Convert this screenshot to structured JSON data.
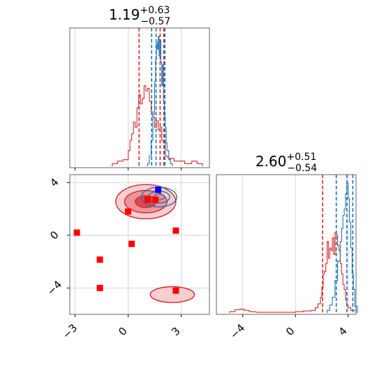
{
  "chart_data": [
    {
      "type": "histogram",
      "panel": "marginal-param-1",
      "title": {
        "main": "1.19",
        "sup": "+0.63",
        "sub": "−0.57"
      },
      "xlim": [
        -3.3,
        4.6
      ],
      "grid": true,
      "tick_labels_shown": false,
      "series": [
        {
          "color": "#d62728",
          "quantiles": [
            0.62,
            1.81,
            2.02
          ],
          "bins": [
            [
              -0.9,
              0.02
            ],
            [
              -0.6,
              0.04
            ],
            [
              -0.3,
              0.05
            ],
            [
              0.0,
              0.12
            ],
            [
              0.1,
              0.2
            ],
            [
              0.2,
              0.25
            ],
            [
              0.3,
              0.34
            ],
            [
              0.4,
              0.3
            ],
            [
              0.5,
              0.45
            ],
            [
              0.6,
              0.55
            ],
            [
              0.7,
              0.48
            ],
            [
              0.8,
              0.52
            ],
            [
              0.9,
              0.62
            ],
            [
              1.0,
              0.58
            ],
            [
              1.1,
              0.6
            ],
            [
              1.2,
              0.5
            ],
            [
              1.3,
              0.42
            ],
            [
              1.4,
              0.38
            ],
            [
              1.5,
              0.3
            ],
            [
              1.6,
              0.35
            ],
            [
              1.7,
              0.28
            ],
            [
              1.8,
              0.3
            ],
            [
              1.9,
              0.2
            ],
            [
              2.0,
              0.18
            ],
            [
              2.1,
              0.08
            ],
            [
              2.2,
              0.07
            ],
            [
              2.3,
              0.05
            ],
            [
              2.4,
              0.06
            ],
            [
              2.6,
              0.04
            ],
            [
              2.8,
              0.04
            ],
            [
              3.2,
              0.02
            ],
            [
              3.6,
              0.04
            ],
            [
              3.9,
              0.02
            ]
          ]
        },
        {
          "color": "#1f77b4",
          "quantiles": [
            1.33,
            1.58,
            2.08
          ],
          "bins": [
            [
              1.1,
              0.02
            ],
            [
              1.2,
              0.08
            ],
            [
              1.3,
              0.2
            ],
            [
              1.4,
              0.4
            ],
            [
              1.5,
              0.65
            ],
            [
              1.55,
              0.82
            ],
            [
              1.6,
              0.95
            ],
            [
              1.65,
              0.9
            ],
            [
              1.7,
              1.0
            ],
            [
              1.75,
              0.85
            ],
            [
              1.8,
              0.97
            ],
            [
              1.85,
              0.8
            ],
            [
              1.9,
              0.62
            ],
            [
              1.95,
              0.78
            ],
            [
              2.0,
              0.5
            ],
            [
              2.05,
              0.38
            ],
            [
              2.1,
              0.3
            ],
            [
              2.15,
              0.18
            ],
            [
              2.2,
              0.12
            ],
            [
              2.3,
              0.06
            ],
            [
              2.4,
              0.02
            ]
          ]
        }
      ]
    },
    {
      "type": "contour-scatter",
      "panel": "joint",
      "xlim": [
        -3.3,
        4.6
      ],
      "ylim": [
        -6.0,
        4.6
      ],
      "x_ticks": [
        "−3",
        "0",
        "3"
      ],
      "y_ticks": [
        "4",
        "0",
        "−4"
      ],
      "grid": true,
      "contours": [
        {
          "color": "#d62728",
          "center": [
            1.0,
            2.55
          ],
          "levels": [
            [
              1.7,
              1.3
            ],
            [
              1.2,
              0.85
            ],
            [
              0.6,
              0.45
            ]
          ]
        },
        {
          "color": "#d62728",
          "center": [
            2.5,
            -4.5
          ],
          "levels": [
            [
              1.25,
              0.6
            ]
          ]
        },
        {
          "color": "#1f77b4",
          "center": [
            1.75,
            2.9
          ],
          "levels": [
            [
              1.0,
              0.75
            ],
            [
              0.6,
              0.45
            ],
            [
              0.3,
              0.22
            ]
          ]
        }
      ],
      "markers": [
        {
          "color": "#ff0000",
          "x": -2.9,
          "y": 0.2
        },
        {
          "color": "#ff0000",
          "x": -1.6,
          "y": -1.85
        },
        {
          "color": "#ff0000",
          "x": -1.6,
          "y": -4.0
        },
        {
          "color": "#ff0000",
          "x": 0.0,
          "y": 1.8
        },
        {
          "color": "#ff0000",
          "x": 0.2,
          "y": -0.65
        },
        {
          "color": "#ff0000",
          "x": 1.1,
          "y": 2.7
        },
        {
          "color": "#ff0000",
          "x": 1.55,
          "y": 2.7
        },
        {
          "color": "#ff0000",
          "x": 2.7,
          "y": 0.35
        },
        {
          "color": "#ff0000",
          "x": 2.7,
          "y": -4.2
        },
        {
          "color": "#0000ff",
          "x": 1.7,
          "y": 3.45
        }
      ]
    },
    {
      "type": "histogram",
      "panel": "marginal-param-2",
      "title": {
        "main": "2.60",
        "sup": "+0.51",
        "sub": "−0.54"
      },
      "xlim": [
        -6.0,
        4.6
      ],
      "x_ticks": [
        "−4",
        "0",
        "4"
      ],
      "grid": true,
      "series": [
        {
          "color": "#d62728",
          "quantiles": [
            2.06,
            3.1,
            3.9
          ],
          "bins": [
            [
              -5.0,
              0.01
            ],
            [
              -4.6,
              0.025
            ],
            [
              -4.2,
              0.03
            ],
            [
              -3.9,
              0.02
            ],
            [
              -3.5,
              0.01
            ],
            [
              -3.0,
              0.005
            ],
            [
              0.0,
              0.01
            ],
            [
              0.6,
              0.015
            ],
            [
              1.2,
              0.02
            ],
            [
              1.5,
              0.04
            ],
            [
              1.7,
              0.07
            ],
            [
              1.9,
              0.12
            ],
            [
              2.0,
              0.2
            ],
            [
              2.1,
              0.3
            ],
            [
              2.2,
              0.32
            ],
            [
              2.3,
              0.38
            ],
            [
              2.4,
              0.55
            ],
            [
              2.5,
              0.42
            ],
            [
              2.6,
              0.5
            ],
            [
              2.7,
              0.48
            ],
            [
              2.8,
              0.58
            ],
            [
              2.9,
              0.45
            ],
            [
              3.0,
              0.62
            ],
            [
              3.1,
              0.6
            ],
            [
              3.2,
              0.52
            ],
            [
              3.3,
              0.48
            ],
            [
              3.4,
              0.38
            ],
            [
              3.5,
              0.3
            ],
            [
              3.6,
              0.22
            ],
            [
              3.7,
              0.18
            ],
            [
              3.8,
              0.1
            ],
            [
              3.9,
              0.06
            ],
            [
              4.0,
              0.04
            ],
            [
              4.2,
              0.02
            ]
          ]
        },
        {
          "color": "#1f77b4",
          "quantiles": [
            3.1,
            3.9,
            4.35
          ],
          "bins": [
            [
              2.4,
              0.02
            ],
            [
              2.6,
              0.06
            ],
            [
              2.8,
              0.12
            ],
            [
              3.0,
              0.25
            ],
            [
              3.2,
              0.4
            ],
            [
              3.4,
              0.55
            ],
            [
              3.5,
              0.65
            ],
            [
              3.6,
              0.75
            ],
            [
              3.7,
              0.8
            ],
            [
              3.8,
              0.92
            ],
            [
              3.9,
              1.0
            ],
            [
              4.0,
              0.88
            ],
            [
              4.1,
              0.7
            ],
            [
              4.2,
              0.5
            ],
            [
              4.3,
              0.3
            ],
            [
              4.4,
              0.18
            ],
            [
              4.5,
              0.05
            ]
          ]
        }
      ]
    }
  ]
}
